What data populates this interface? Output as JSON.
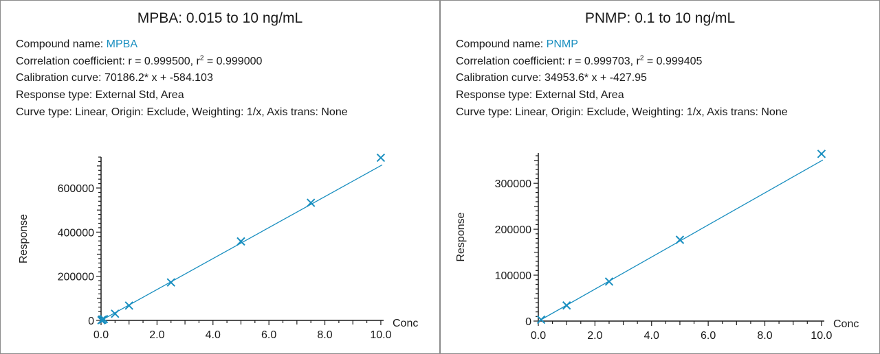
{
  "colors": {
    "series": "#1a8fc0",
    "axis": "#1a1a1a",
    "compound": "#1a8fc0"
  },
  "panels": [
    {
      "title": "MPBA: 0.015 to 10 ng/mL",
      "compound_label": "Compound name: ",
      "compound": "MPBA",
      "corr_label": "Correlation coefficient: r = 0.999500, r",
      "corr_sup": "2",
      "corr_tail": " = 0.999000",
      "calibration": "Calibration curve: 70186.2* x + -584.103",
      "response_type": "Response type: External Std, Area",
      "curve_type": "Curve type: Linear, Origin: Exclude, Weighting: 1/x, Axis trans: None"
    },
    {
      "title": "PNMP: 0.1 to 10 ng/mL",
      "compound_label": "Compound name: ",
      "compound": "PNMP",
      "corr_label": "Correlation coefficient: r = 0.999703, r",
      "corr_sup": "2",
      "corr_tail": " = 0.999405",
      "calibration": "Calibration curve: 34953.6* x + -427.95",
      "response_type": "Response type: External Std, Area",
      "curve_type": "Curve type: Linear, Origin: Exclude, Weighting: 1/x, Axis trans: None"
    }
  ],
  "chart_data": [
    {
      "type": "scatter",
      "title": "MPBA: 0.015 to 10 ng/mL",
      "xlabel": "Conc",
      "ylabel": "Response",
      "xlim": [
        0,
        10.1
      ],
      "ylim": [
        0,
        740000
      ],
      "xticks": [
        0,
        2,
        4,
        6,
        8,
        10
      ],
      "xtick_labels": [
        "0.0",
        "2.0",
        "4.0",
        "6.0",
        "8.0",
        "10.0"
      ],
      "yticks": [
        0,
        200000,
        400000,
        600000
      ],
      "ytick_labels": [
        "0",
        "200000",
        "400000",
        "600000"
      ],
      "fit": {
        "slope": 70186.2,
        "intercept": -584.103
      },
      "points": {
        "x": [
          0.015,
          0.05,
          0.1,
          0.5,
          1.0,
          2.5,
          5.0,
          7.5,
          10.0
        ],
        "y": [
          500,
          3000,
          6000,
          30000,
          67000,
          172000,
          358000,
          533000,
          737000
        ]
      },
      "grid": false
    },
    {
      "type": "scatter",
      "title": "PNMP: 0.1 to 10 ng/mL",
      "xlabel": "Conc",
      "ylabel": "Response",
      "xlim": [
        0,
        10.1
      ],
      "ylim": [
        0,
        366000
      ],
      "xticks": [
        0,
        2,
        4,
        6,
        8,
        10
      ],
      "xtick_labels": [
        "0.0",
        "2.0",
        "4.0",
        "6.0",
        "8.0",
        "10.0"
      ],
      "yticks": [
        0,
        100000,
        200000,
        300000
      ],
      "ytick_labels": [
        "0",
        "100000",
        "200000",
        "300000"
      ],
      "fit": {
        "slope": 34953.6,
        "intercept": -427.95
      },
      "points": {
        "x": [
          0.1,
          1.0,
          2.5,
          5.0,
          10.0
        ],
        "y": [
          3000,
          34000,
          86000,
          177000,
          364000
        ]
      },
      "grid": false
    }
  ]
}
